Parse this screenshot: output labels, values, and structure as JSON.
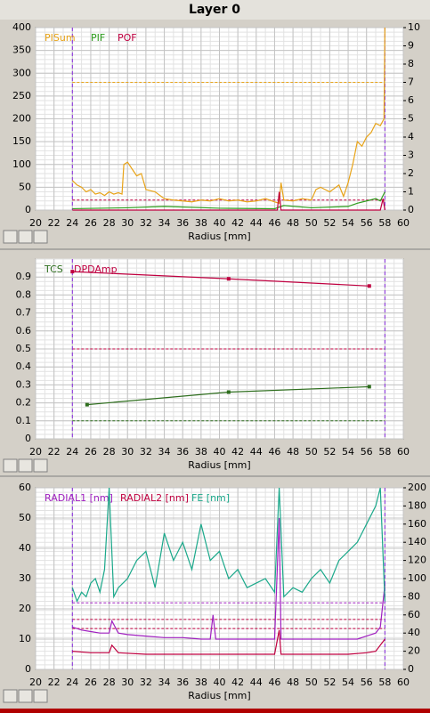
{
  "title": "Layer 0",
  "chart_data": [
    {
      "type": "line",
      "xlabel": "Radius [mm]",
      "xlim": [
        20,
        60
      ],
      "xticks": [
        20,
        22,
        24,
        26,
        28,
        30,
        32,
        34,
        36,
        38,
        40,
        42,
        44,
        46,
        48,
        50,
        52,
        54,
        56,
        58,
        60
      ],
      "ylim": [
        0,
        400
      ],
      "yticks": [
        0,
        50,
        100,
        150,
        200,
        250,
        300,
        350,
        400
      ],
      "y2lim": [
        0,
        10
      ],
      "y2ticks": [
        0,
        1,
        2,
        3,
        4,
        5,
        6,
        7,
        8,
        9,
        10
      ],
      "grid": true,
      "vlines": [
        24,
        58
      ],
      "vline_color": "#8a2be2",
      "hlines": [
        {
          "value": 280,
          "color": "#e8a317"
        },
        {
          "value": 22,
          "color": "#c00040"
        }
      ],
      "series": [
        {
          "name": "PISum",
          "color": "#e8a317",
          "x": [
            24,
            24.5,
            25,
            25.5,
            26,
            26.5,
            27,
            27.5,
            28,
            28.5,
            29,
            29.4,
            29.6,
            30,
            30.5,
            31,
            31.5,
            32,
            33,
            34,
            35,
            36,
            37,
            38,
            39,
            40,
            41,
            42,
            43,
            44,
            45,
            46,
            46.5,
            46.7,
            47,
            48,
            49,
            50,
            50.5,
            51,
            52,
            53,
            53.5,
            54,
            54.5,
            55,
            55.5,
            56,
            56.5,
            57,
            57.5,
            57.9,
            58
          ],
          "values": [
            65,
            55,
            50,
            40,
            45,
            35,
            38,
            32,
            40,
            35,
            38,
            35,
            100,
            105,
            90,
            75,
            80,
            45,
            40,
            25,
            22,
            20,
            18,
            22,
            20,
            25,
            20,
            22,
            18,
            20,
            25,
            18,
            15,
            60,
            22,
            20,
            25,
            22,
            45,
            50,
            40,
            55,
            30,
            60,
            100,
            150,
            140,
            160,
            170,
            190,
            185,
            200,
            400
          ]
        },
        {
          "name": "PIF",
          "color": "#2e9e1e",
          "x": [
            24,
            30,
            34,
            40,
            46,
            47,
            50,
            54,
            55,
            56,
            57,
            57.5,
            58
          ],
          "values": [
            3,
            5,
            8,
            4,
            3,
            10,
            5,
            8,
            15,
            20,
            25,
            20,
            40
          ]
        },
        {
          "name": "POF",
          "color": "#c00040",
          "x": [
            24,
            40,
            46.3,
            46.5,
            46.7,
            50,
            57.5,
            57.8,
            58
          ],
          "values": [
            0,
            0,
            0,
            40,
            0,
            0,
            0,
            25,
            0
          ]
        }
      ]
    },
    {
      "type": "line",
      "xlabel": "Radius [mm]",
      "xlim": [
        20,
        60
      ],
      "xticks": [
        20,
        22,
        24,
        26,
        28,
        30,
        32,
        34,
        36,
        38,
        40,
        42,
        44,
        46,
        48,
        50,
        52,
        54,
        56,
        58,
        60
      ],
      "ylim": [
        0,
        1
      ],
      "yticks": [
        0,
        0.1,
        0.2,
        0.3,
        0.4,
        0.5,
        0.6,
        0.7,
        0.8,
        0.9
      ],
      "grid": true,
      "markers": true,
      "vlines": [
        24,
        58
      ],
      "vline_color": "#8a2be2",
      "hlines": [
        {
          "value": 0.5,
          "color": "#c00040"
        },
        {
          "value": 0.1,
          "color": "#2e6e1e"
        }
      ],
      "series": [
        {
          "name": "TCS",
          "color": "#2e6e1e",
          "x": [
            25.6,
            41,
            56.3
          ],
          "values": [
            0.19,
            0.26,
            0.29
          ]
        },
        {
          "name": "DPDAmp",
          "color": "#c00040",
          "x": [
            24,
            41,
            56.3
          ],
          "values": [
            0.93,
            0.89,
            0.85
          ]
        }
      ]
    },
    {
      "type": "line",
      "xlabel": "Radius [mm]",
      "xlim": [
        20,
        60
      ],
      "xticks": [
        20,
        22,
        24,
        26,
        28,
        30,
        32,
        34,
        36,
        38,
        40,
        42,
        44,
        46,
        48,
        50,
        52,
        54,
        56,
        58,
        60
      ],
      "ylim": [
        0,
        60
      ],
      "yticks": [
        0,
        10,
        20,
        30,
        40,
        50,
        60
      ],
      "y2lim": [
        0,
        200
      ],
      "y2ticks": [
        0,
        20,
        40,
        60,
        80,
        100,
        120,
        140,
        160,
        180,
        200
      ],
      "grid": true,
      "vlines": [
        24,
        58
      ],
      "vline_color": "#8a2be2",
      "hlines": [
        {
          "value": 22,
          "color": "#a020c0"
        },
        {
          "value": 16.5,
          "color": "#c00040"
        },
        {
          "value": 13.5,
          "color": "#c00040"
        }
      ],
      "series": [
        {
          "name": "RADIAL1 [nm]",
          "color": "#a020c0",
          "x": [
            24,
            25,
            26,
            27,
            28,
            28.3,
            29,
            30,
            32,
            34,
            36,
            38,
            39,
            39.3,
            39.6,
            40,
            42,
            44,
            46,
            46.5,
            46.7,
            47,
            48,
            50,
            52,
            54,
            55,
            56,
            57,
            57.5,
            58
          ],
          "values": [
            14,
            13,
            12.5,
            12,
            12,
            16,
            12,
            11.5,
            11,
            10.5,
            10.5,
            10,
            10,
            18,
            10,
            10,
            10,
            10,
            10,
            50,
            10,
            10,
            10,
            10,
            10,
            10,
            10,
            11,
            12,
            14,
            28
          ]
        },
        {
          "name": "RADIAL2 [nm]",
          "color": "#c00040",
          "x": [
            24,
            26,
            28,
            28.3,
            29,
            32,
            36,
            40,
            44,
            46,
            46.5,
            46.7,
            47,
            50,
            54,
            56,
            57,
            58
          ],
          "values": [
            6,
            5.5,
            5.5,
            8,
            5.5,
            5,
            5,
            5,
            5,
            5,
            13,
            5,
            5,
            5,
            5,
            5.5,
            6,
            10
          ]
        },
        {
          "name": "FE [nm]",
          "color": "#1aa88a",
          "axis": "y2",
          "x": [
            24,
            24.5,
            25,
            25.5,
            26,
            26.5,
            27,
            27.5,
            28,
            28.5,
            29,
            30,
            31,
            32,
            33,
            34,
            35,
            36,
            37,
            38,
            39,
            40,
            41,
            42,
            43,
            44,
            45,
            46,
            46.5,
            47,
            48,
            49,
            50,
            51,
            52,
            53,
            54,
            55,
            56,
            57,
            57.5,
            58
          ],
          "values": [
            90,
            75,
            85,
            80,
            95,
            100,
            85,
            110,
            200,
            80,
            90,
            100,
            120,
            130,
            90,
            150,
            120,
            140,
            110,
            160,
            120,
            130,
            100,
            110,
            90,
            95,
            100,
            85,
            200,
            80,
            90,
            85,
            100,
            110,
            95,
            120,
            130,
            140,
            160,
            180,
            200,
            75
          ]
        }
      ]
    }
  ]
}
